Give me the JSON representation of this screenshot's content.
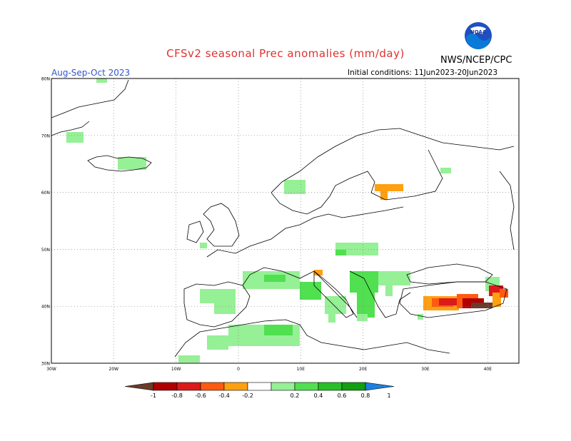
{
  "header": {
    "title": "CFSv2 seasonal Prec anomalies (mm/day)",
    "org": "NWS/NCEP/CPC",
    "period": "Aug-Sep-Oct 2023",
    "init_conditions": "Initial conditions: 11Jun2023-20Jun2023",
    "logo_text": "NOAA"
  },
  "map": {
    "lat_labels": [
      "80N",
      "70N",
      "60N",
      "50N",
      "40N",
      "30N"
    ],
    "lon_labels": [
      "30W",
      "20W",
      "10W",
      "0",
      "10E",
      "20E",
      "30E",
      "40E"
    ],
    "lat_range": [
      30,
      80
    ],
    "lon_range": [
      -30,
      45
    ],
    "gridlines": "dotted"
  },
  "legend": {
    "ticks": [
      "-1",
      "-0.8",
      "-0.6",
      "-0.4",
      "-0.2",
      "0.2",
      "0.4",
      "0.6",
      "0.8",
      "1"
    ],
    "colors": [
      "#6b3a2a",
      "#b00000",
      "#dd1a1a",
      "#ff5a10",
      "#ffa010",
      "#ffffff",
      "#96f096",
      "#50e050",
      "#28c028",
      "#10a010",
      "#1f7fe0"
    ]
  }
}
